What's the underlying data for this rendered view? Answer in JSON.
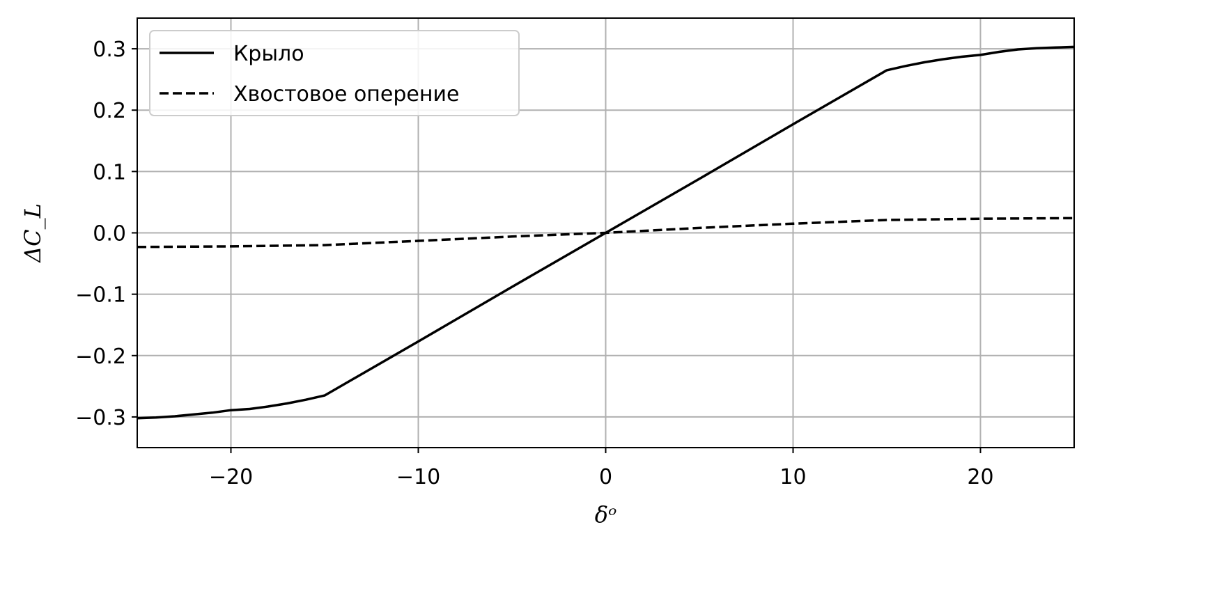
{
  "chart_data": {
    "type": "line",
    "title": "",
    "xlabel": "δᵒ",
    "ylabel": "ΔC_L",
    "xlim": [
      -25,
      25
    ],
    "ylim": [
      -0.35,
      0.35
    ],
    "xticks": [
      -20,
      -10,
      0,
      10,
      20
    ],
    "xtick_labels": [
      "−20",
      "−10",
      "0",
      "10",
      "20"
    ],
    "yticks": [
      -0.3,
      -0.2,
      -0.1,
      0.0,
      0.1,
      0.2,
      0.3
    ],
    "ytick_labels": [
      "−0.3",
      "−0.2",
      "−0.1",
      "0.0",
      "0.1",
      "0.2",
      "0.3"
    ],
    "grid": true,
    "legend_position": "top-left",
    "series": [
      {
        "name": "Крыло",
        "style": "solid",
        "color": "#000000",
        "x": [
          -25,
          -24,
          -23,
          -22,
          -21,
          -20,
          -19,
          -18,
          -17,
          -16,
          -15,
          -10,
          -5,
          0,
          5,
          10,
          15,
          16,
          17,
          18,
          19,
          20,
          21,
          22,
          23,
          24,
          25
        ],
        "y": [
          -0.302,
          -0.301,
          -0.299,
          -0.296,
          -0.293,
          -0.289,
          -0.287,
          -0.283,
          -0.278,
          -0.272,
          -0.265,
          -0.177,
          -0.088,
          0.0,
          0.088,
          0.177,
          0.265,
          0.272,
          0.278,
          0.283,
          0.287,
          0.29,
          0.295,
          0.299,
          0.301,
          0.302,
          0.303
        ]
      },
      {
        "name": "Хвостовое оперение",
        "style": "dashed",
        "color": "#000000",
        "x": [
          -25,
          -20,
          -15,
          -10,
          -5,
          0,
          5,
          10,
          15,
          20,
          25
        ],
        "y": [
          -0.023,
          -0.022,
          -0.02,
          -0.013,
          -0.006,
          0.0,
          0.008,
          0.015,
          0.021,
          0.023,
          0.024
        ]
      }
    ]
  }
}
